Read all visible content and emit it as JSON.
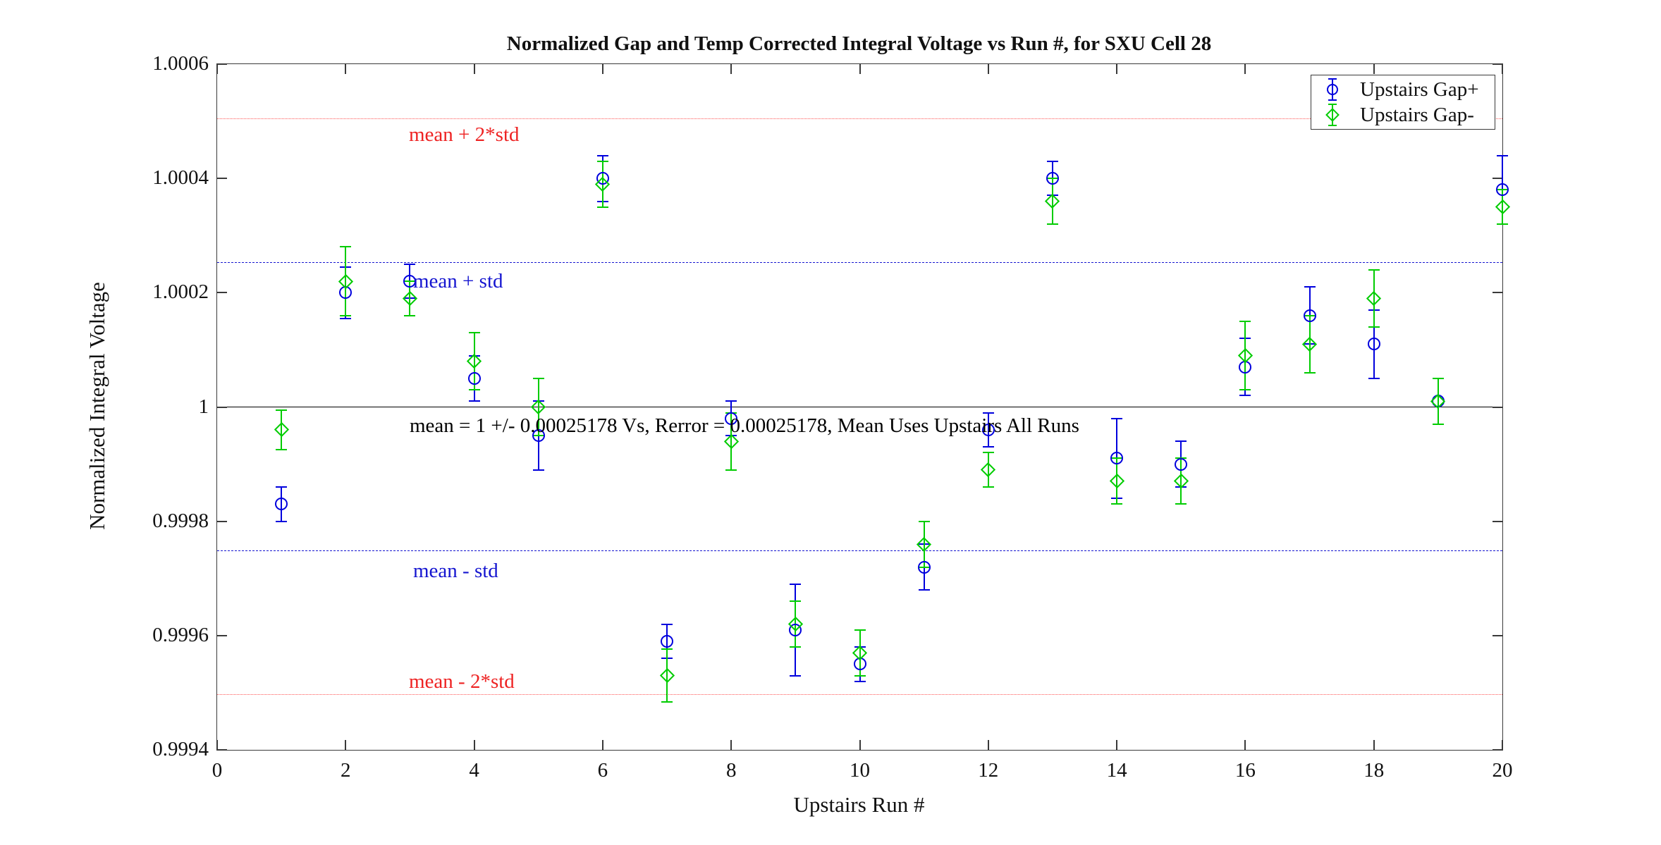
{
  "colors": {
    "series_blue": "#0000DD",
    "series_green": "#00CC00",
    "std_line_blue": "#1515D0",
    "std2_line_red": "#FF5555",
    "std2_text_red": "#EE2222",
    "mean_line_black": "#000000",
    "axis": "#3a3a3a"
  },
  "annotations": {
    "mean_plus_2std": "mean + 2*std",
    "mean_plus_std": "mean + std",
    "mean_line": "mean = 1 +/- 0.00025178 Vs, Rerror = 0.00025178, Mean Uses Upstairs All Runs",
    "mean_minus_std": "mean - std",
    "mean_minus_2std": "mean - 2*std"
  },
  "chart_data": {
    "type": "scatter",
    "title": "Normalized Gap and Temp Corrected Integral Voltage vs Run #, for SXU Cell 28",
    "xlabel": "Upstairs Run #",
    "ylabel": "Normalized Integral Voltage",
    "grid": false,
    "legend_position": "top-right",
    "xlim": [
      0,
      20
    ],
    "ylim": [
      0.9994,
      1.0006
    ],
    "xticks": [
      0,
      2,
      4,
      6,
      8,
      10,
      12,
      14,
      16,
      18,
      20
    ],
    "yticks": [
      0.9994,
      0.9996,
      0.9998,
      1,
      1.0002,
      1.0004,
      1.0006
    ],
    "ytick_labels": [
      "0.9994",
      "0.9996",
      "0.9998",
      "1",
      "1.0002",
      "1.0004",
      "1.0006"
    ],
    "x": [
      1,
      2,
      3,
      4,
      5,
      6,
      7,
      8,
      9,
      10,
      11,
      12,
      13,
      14,
      15,
      16,
      17,
      18,
      19,
      20
    ],
    "series": [
      {
        "id": "gap-plus",
        "name": "Upstairs Gap+",
        "marker": "circle",
        "color": "#0000DD",
        "values": [
          0.99983,
          1.0002,
          1.00022,
          1.00005,
          0.99995,
          1.0004,
          0.99959,
          0.99998,
          0.99961,
          0.99955,
          0.99972,
          0.99996,
          1.0004,
          0.99991,
          0.9999,
          1.00007,
          1.00016,
          1.00011,
          1.00001,
          1.00038
        ],
        "errors": [
          3e-05,
          4.5e-05,
          3e-05,
          4e-05,
          6e-05,
          4e-05,
          3e-05,
          3e-05,
          8e-05,
          3e-05,
          4e-05,
          3e-05,
          3e-05,
          7e-05,
          4e-05,
          5e-05,
          5e-05,
          6e-05,
          4e-05,
          6e-05
        ]
      },
      {
        "id": "gap-minus",
        "name": "Upstairs Gap-",
        "marker": "diamond",
        "color": "#00CC00",
        "values": [
          0.99996,
          1.00022,
          1.00019,
          1.00008,
          1.0,
          1.00039,
          0.99953,
          0.99994,
          0.99962,
          0.99957,
          0.99976,
          0.99989,
          1.00036,
          0.99987,
          0.99987,
          1.00009,
          1.00011,
          1.00019,
          1.00001,
          1.00035
        ],
        "errors": [
          3.5e-05,
          6e-05,
          3e-05,
          5e-05,
          5e-05,
          4e-05,
          4.6e-05,
          5e-05,
          4e-05,
          4e-05,
          4e-05,
          3e-05,
          4e-05,
          4e-05,
          4e-05,
          6e-05,
          5e-05,
          5e-05,
          4e-05,
          3e-05
        ]
      }
    ],
    "reference_lines": [
      {
        "id": "mean-plus-2std",
        "label": "mean + 2*std",
        "value": 1.00050356,
        "style": "dotted",
        "color": "#FF5555"
      },
      {
        "id": "mean-plus-std",
        "label": "mean + std",
        "value": 1.00025178,
        "style": "dashed",
        "color": "#1515D0"
      },
      {
        "id": "mean",
        "label": "mean = 1",
        "value": 1.0,
        "style": "solid",
        "color": "#000000"
      },
      {
        "id": "mean-minus-std",
        "label": "mean - std",
        "value": 0.99974822,
        "style": "dashed",
        "color": "#1515D0"
      },
      {
        "id": "mean-minus-2std",
        "label": "mean - 2*std",
        "value": 0.99949644,
        "style": "dotted",
        "color": "#FF5555"
      }
    ]
  }
}
